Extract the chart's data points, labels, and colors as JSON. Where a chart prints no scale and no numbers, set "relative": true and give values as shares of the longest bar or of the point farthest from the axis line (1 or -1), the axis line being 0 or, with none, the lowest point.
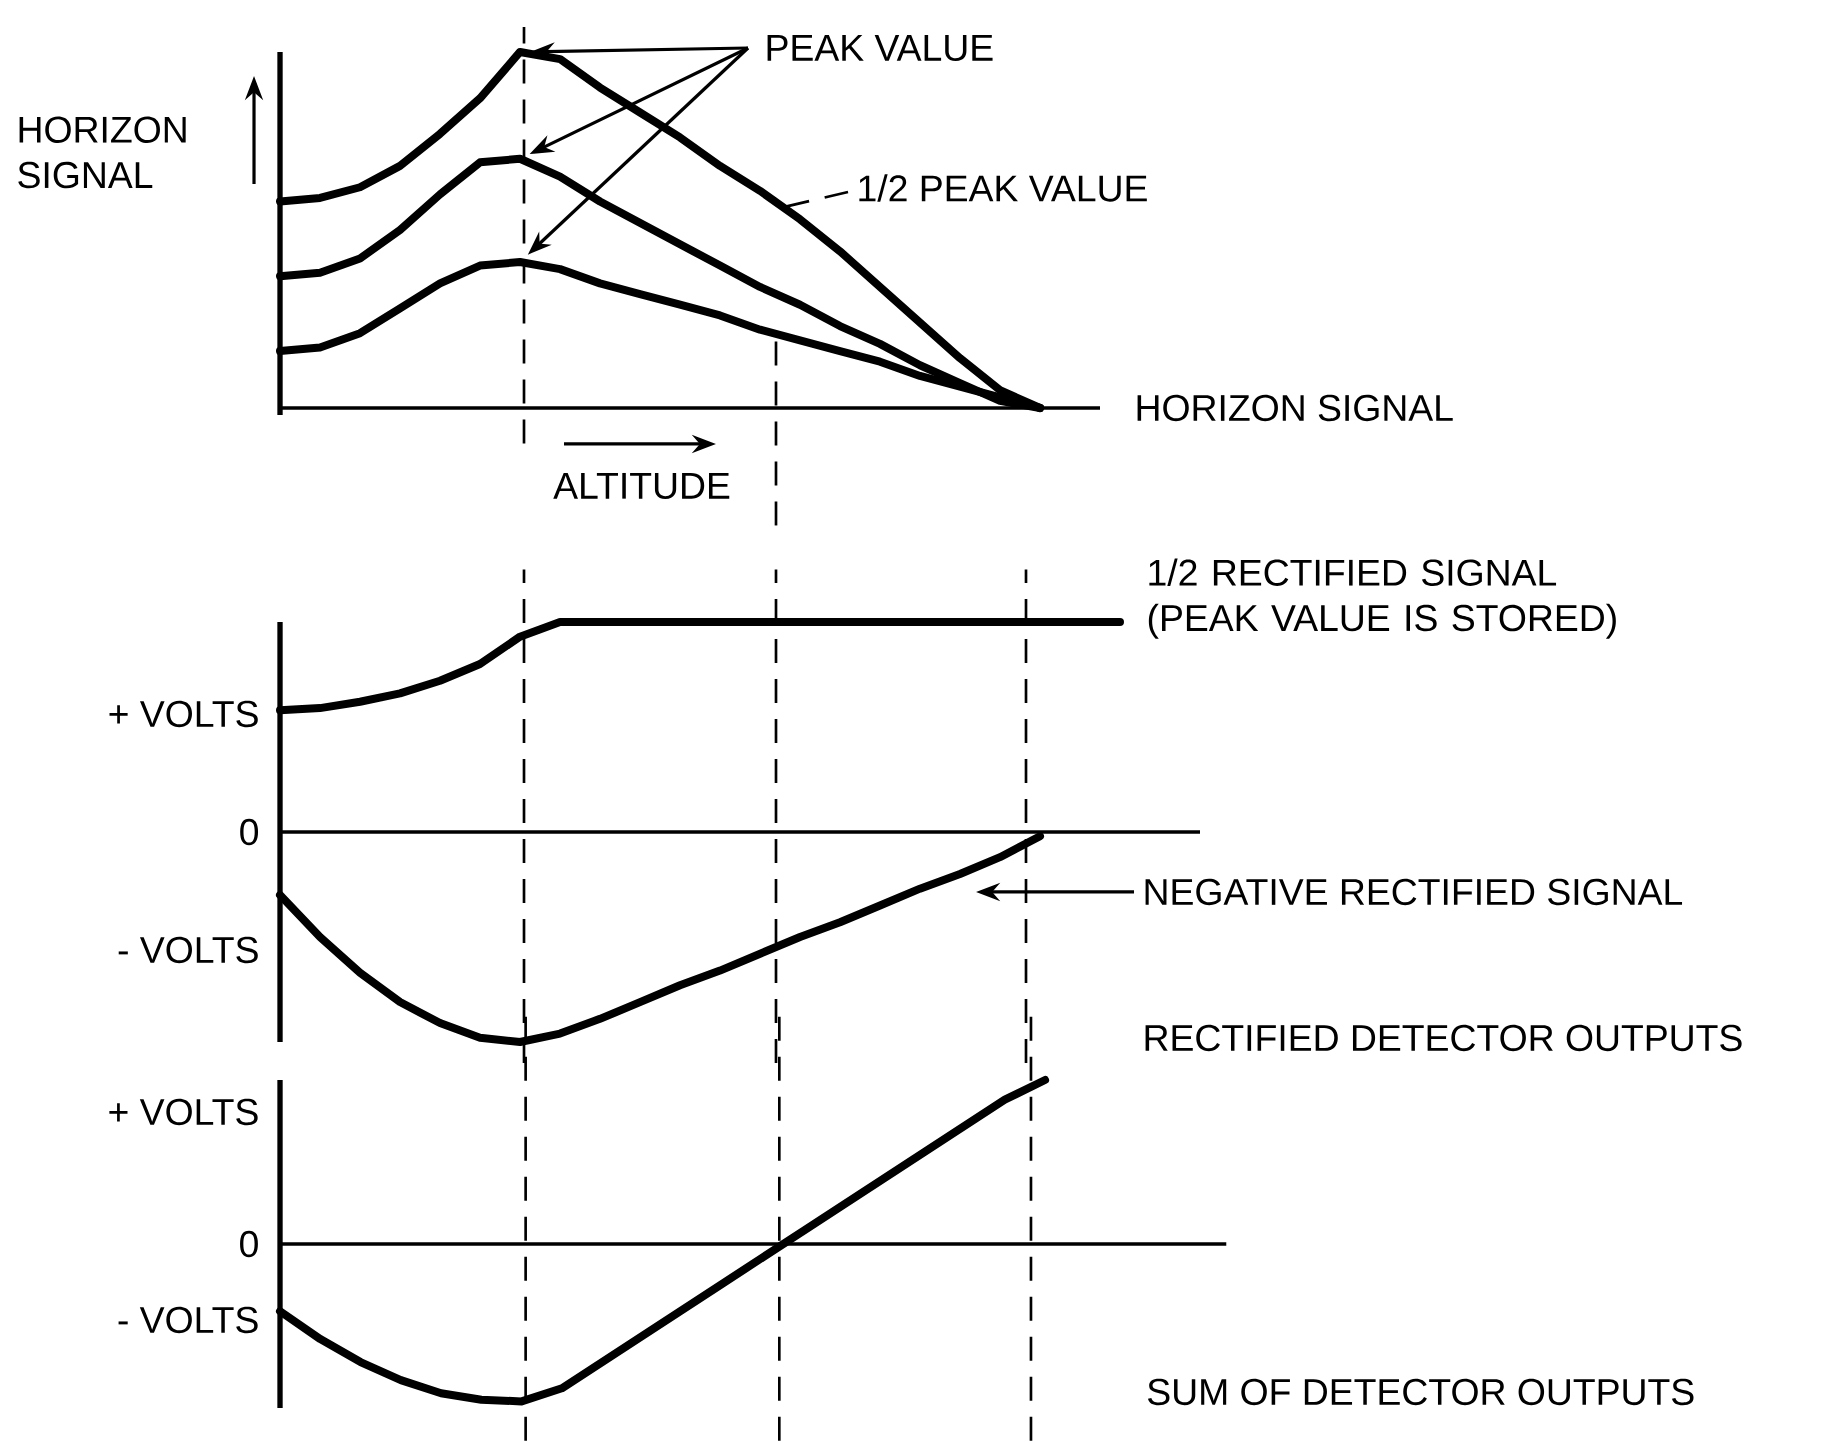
{
  "chart_data": [
    {
      "type": "line",
      "relative": true,
      "xlabel": "ALTITUDE",
      "ylabel": "HORIZON SIGNAL",
      "categories": [
        null,
        null,
        null,
        null,
        null,
        null,
        null,
        null,
        null,
        null,
        null,
        null,
        null,
        null,
        null,
        null,
        null,
        null,
        null,
        null
      ],
      "series": [
        {
          "color": "#000000",
          "values": [
            0.58,
            0.59,
            0.62,
            0.68,
            0.77,
            0.87,
            1,
            0.98,
            0.9,
            0.83,
            0.76,
            0.68,
            0.61,
            0.53,
            0.44,
            0.34,
            0.24,
            0.14,
            0.05,
            0
          ]
        },
        {
          "color": "#000000",
          "values": [
            0.37,
            0.38,
            0.42,
            0.5,
            0.6,
            0.69,
            0.7,
            0.65,
            0.58,
            0.52,
            0.46,
            0.4,
            0.34,
            0.29,
            0.23,
            0.18,
            0.12,
            0.07,
            0.02,
            0
          ]
        },
        {
          "color": "#000000",
          "values": [
            0.16,
            0.17,
            0.21,
            0.28,
            0.35,
            0.4,
            0.41,
            0.39,
            0.35,
            0.32,
            0.29,
            0.26,
            0.22,
            0.19,
            0.16,
            0.13,
            0.09,
            0.06,
            0.03,
            0
          ]
        }
      ],
      "annotations": [
        "PEAK VALUE",
        "1/2 PEAK VALUE",
        "HORIZON SIGNAL"
      ]
    },
    {
      "type": "line",
      "relative": true,
      "title": "RECTIFIED DETECTOR OUTPUTS",
      "categories": [
        null,
        null,
        null,
        null,
        null,
        null,
        null,
        null,
        null,
        null,
        null,
        null,
        null,
        null,
        null,
        null,
        null,
        null,
        null,
        null,
        null,
        null
      ],
      "series": [
        {
          "name": "1/2 RECTIFIED SIGNAL (PEAK VALUE IS STORED)",
          "color": "#000000",
          "values": [
            0.58,
            0.59,
            0.62,
            0.66,
            0.72,
            0.8,
            0.93,
            1,
            1,
            1,
            1,
            1,
            1,
            1,
            1,
            1,
            1,
            1,
            1,
            1,
            1,
            1
          ]
        },
        {
          "name": "NEGATIVE RECTIFIED SIGNAL",
          "color": "#000000",
          "values": [
            -0.3,
            -0.5,
            -0.67,
            -0.81,
            -0.91,
            -0.98,
            -1,
            -0.96,
            -0.89,
            -0.81,
            -0.73,
            -0.66,
            -0.58,
            -0.5,
            -0.43,
            -0.35,
            -0.27,
            -0.2,
            -0.12,
            -0.02,
            null,
            null
          ]
        }
      ],
      "annotations": [
        "+ VOLTS",
        "0",
        "- VOLTS"
      ]
    },
    {
      "type": "line",
      "relative": true,
      "title": "SUM OF DETECTOR OUTPUTS",
      "categories": [
        null,
        null,
        null,
        null,
        null,
        null,
        null,
        null,
        null,
        null,
        null,
        null,
        null,
        null,
        null,
        null,
        null,
        null,
        null,
        null,
        null,
        null
      ],
      "series": [
        {
          "color": "#000000",
          "values": [
            -0.41,
            -0.58,
            -0.72,
            -0.83,
            -0.91,
            -0.95,
            -0.96,
            -0.88,
            -0.72,
            -0.56,
            -0.4,
            -0.24,
            -0.08,
            0.08,
            0.24,
            0.4,
            0.56,
            0.72,
            0.88,
            1,
            null,
            null
          ]
        }
      ],
      "annotations": [
        "+ VOLTS",
        "0",
        "- VOLTS"
      ]
    }
  ]
}
